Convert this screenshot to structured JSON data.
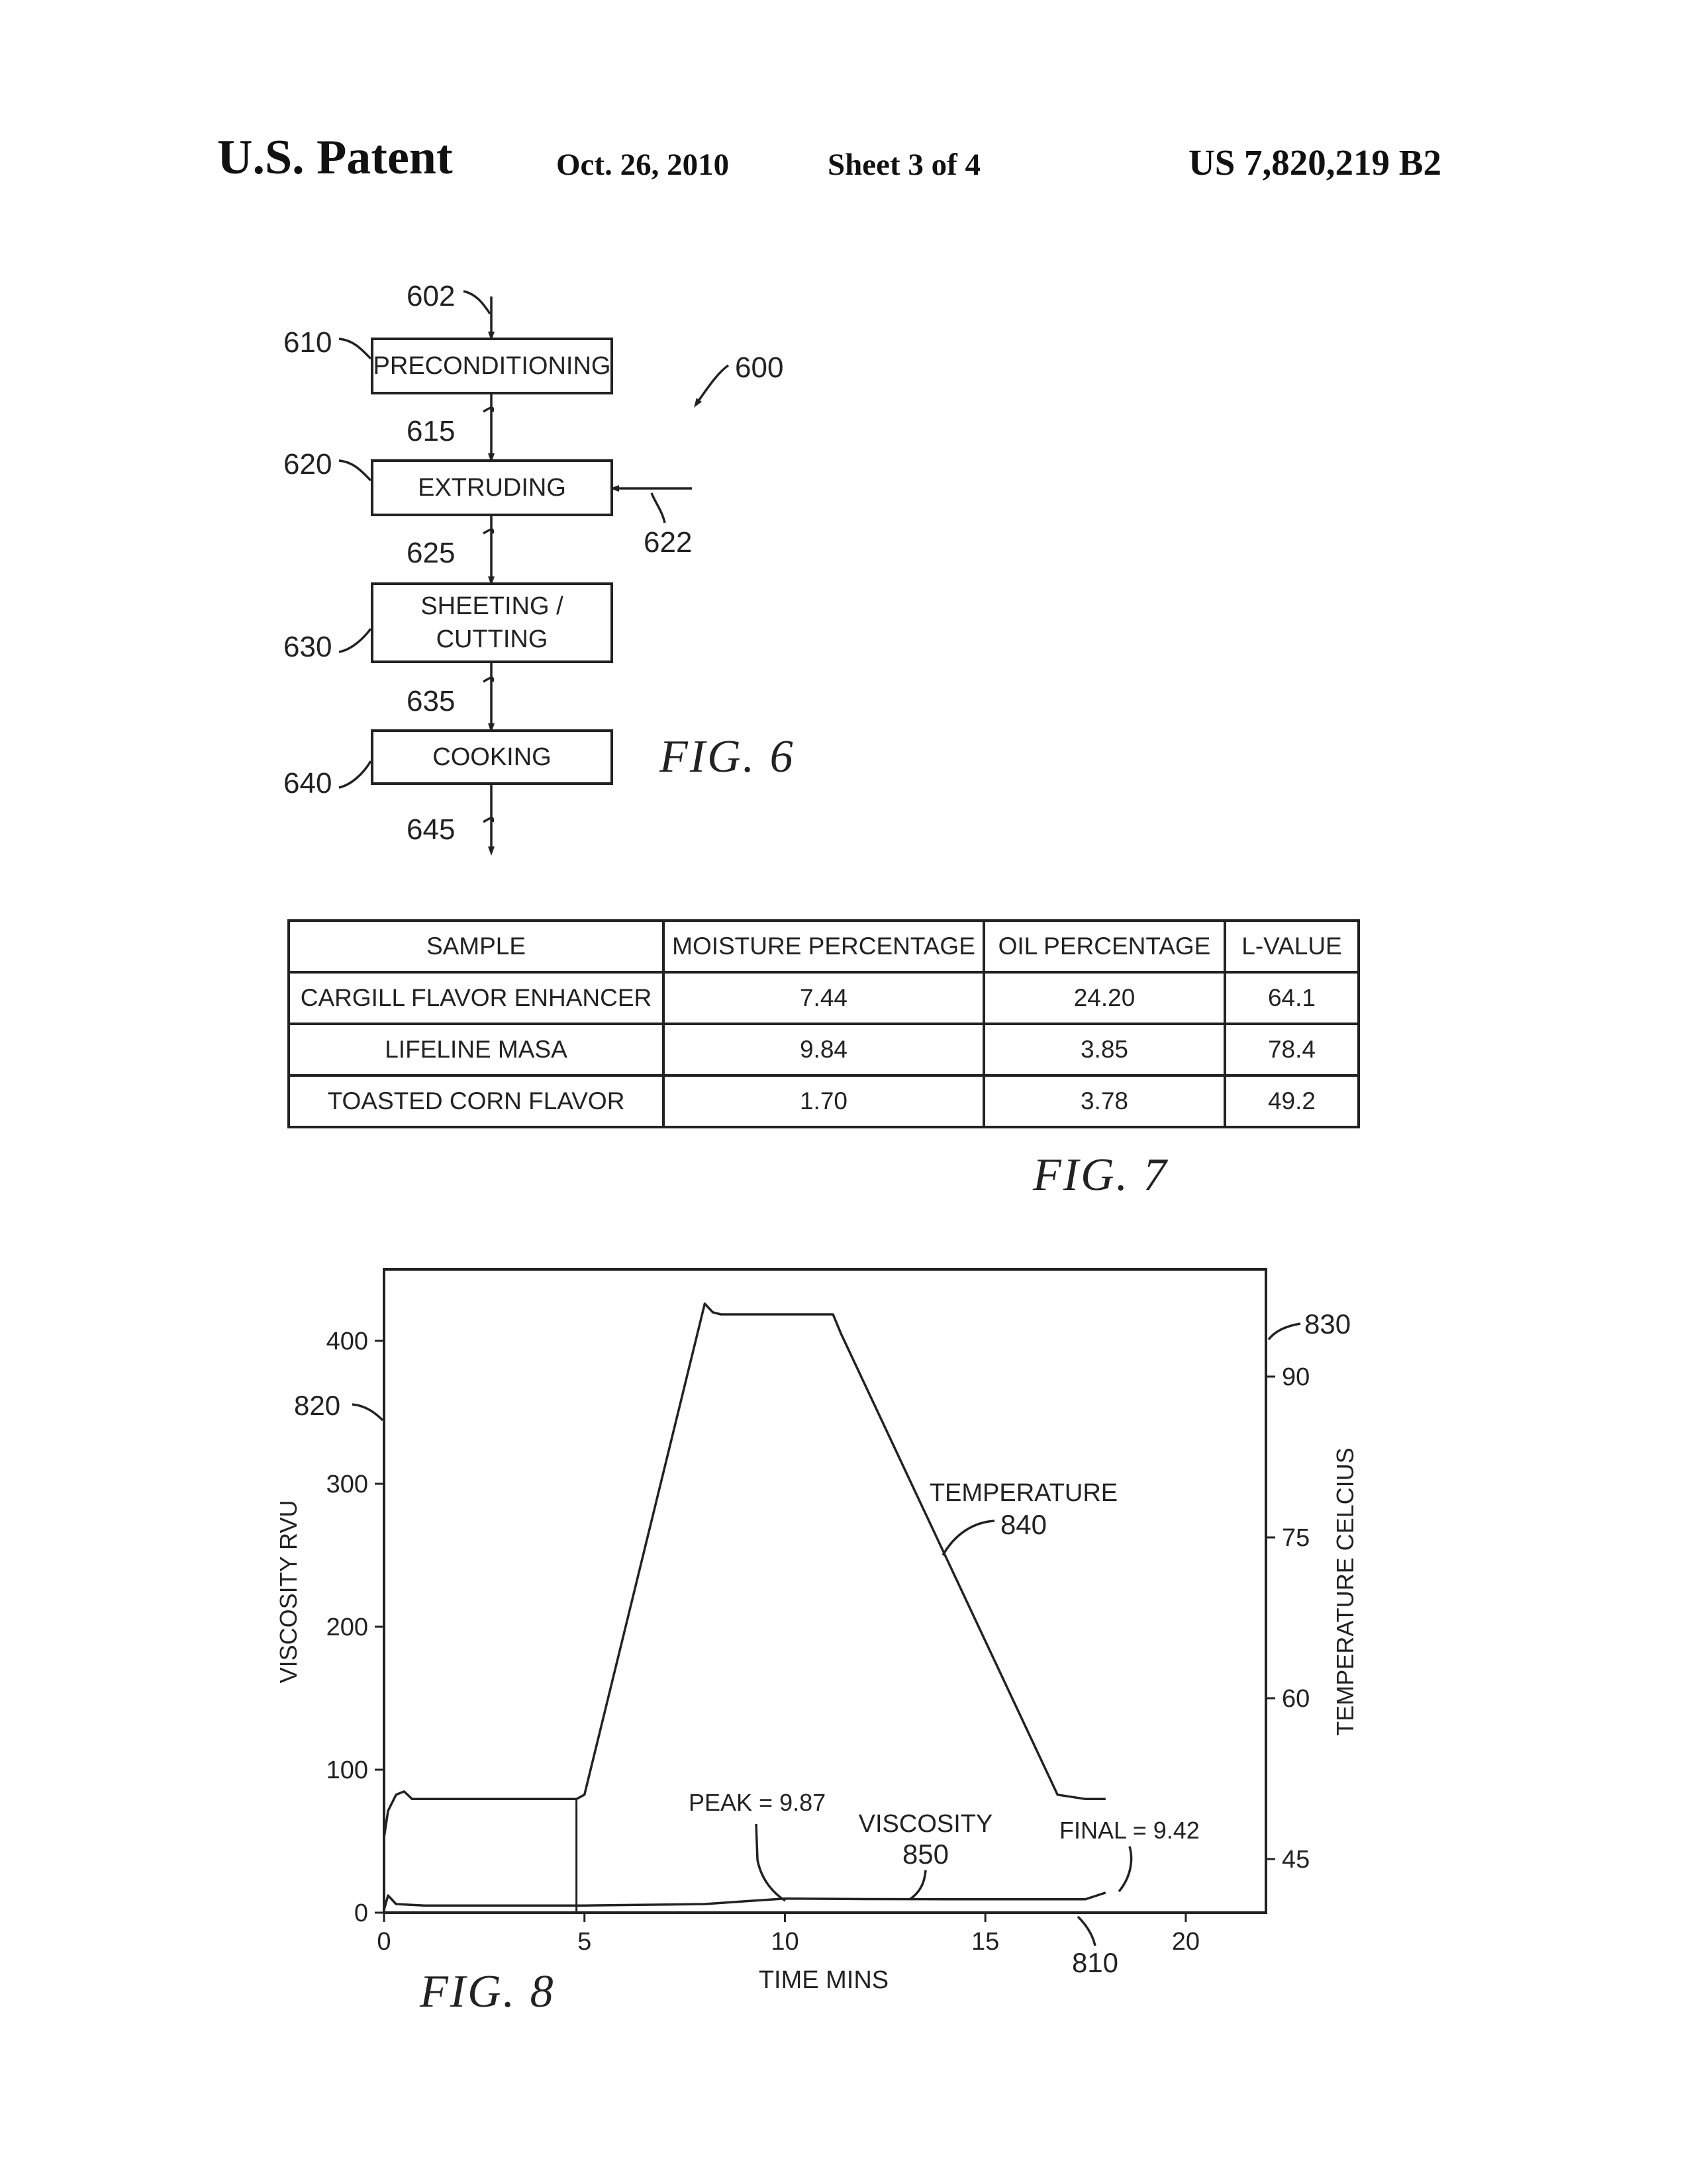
{
  "header": {
    "title": "U.S. Patent",
    "date": "Oct. 26, 2010",
    "sheet": "Sheet 3 of 4",
    "patent_number": "US 7,820,219 B2"
  },
  "fig6": {
    "caption": "FIG. 6",
    "ref_600": "600",
    "ref_602": "602",
    "ref_615": "615",
    "ref_622": "622",
    "ref_625": "625",
    "ref_635": "635",
    "ref_645": "645",
    "steps": [
      {
        "ref": "610",
        "label": "PRECONDITIONING"
      },
      {
        "ref": "620",
        "label": "EXTRUDING"
      },
      {
        "ref": "630",
        "label_line1": "SHEETING /",
        "label_line2": "CUTTING"
      },
      {
        "ref": "640",
        "label": "COOKING"
      }
    ]
  },
  "fig7": {
    "caption": "FIG. 7",
    "columns": [
      "SAMPLE",
      "MOISTURE PERCENTAGE",
      "OIL PERCENTAGE",
      "L-VALUE"
    ],
    "rows": [
      [
        "CARGILL FLAVOR ENHANCER",
        "7.44",
        "24.20",
        "64.1"
      ],
      [
        "LIFELINE MASA",
        "9.84",
        "3.85",
        "78.4"
      ],
      [
        "TOASTED CORN FLAVOR",
        "1.70",
        "3.78",
        "49.2"
      ]
    ]
  },
  "chart_data": {
    "type": "line",
    "caption": "FIG. 8",
    "xlabel": "TIME MINS",
    "ylabel": "VISCOSITY RVU",
    "y2label": "TEMPERATURE CELCIUS",
    "xlim": [
      0,
      22
    ],
    "ylim": [
      0,
      450
    ],
    "y2lim": [
      40,
      100
    ],
    "xticks": [
      0,
      5,
      10,
      15,
      20
    ],
    "yticks": [
      0,
      100,
      200,
      300,
      400
    ],
    "y2ticks": [
      45,
      60,
      75,
      90
    ],
    "series": [
      {
        "name": "TEMPERATURE",
        "axis": "right",
        "x": [
          0,
          0.1,
          0.3,
          0.5,
          0.7,
          1.0,
          3.0,
          4.8,
          5.0,
          8.0,
          8.2,
          8.4,
          10.0,
          11.2,
          11.4,
          16.8,
          17.5,
          18.0
        ],
        "y": [
          47,
          49.5,
          51,
          51.3,
          50.6,
          50.6,
          50.6,
          50.6,
          51,
          96.8,
          96,
          95.8,
          95.8,
          95.8,
          94,
          51,
          50.6,
          50.6
        ]
      },
      {
        "name": "VISCOSITY",
        "axis": "left",
        "x": [
          0,
          0.1,
          0.3,
          1,
          5,
          8,
          10,
          12,
          14,
          17.5,
          18.0
        ],
        "y": [
          2,
          12,
          6,
          5,
          5,
          6,
          9.87,
          9.5,
          9.4,
          9.42,
          14
        ]
      }
    ],
    "annotations": [
      {
        "text": "PEAK = 9.87"
      },
      {
        "text": "FINAL = 9.42"
      },
      {
        "text": "TEMPERATURE",
        "ref": "840"
      },
      {
        "text": "VISCOSITY",
        "ref": "850"
      }
    ],
    "refs": [
      "810",
      "820",
      "830"
    ]
  }
}
